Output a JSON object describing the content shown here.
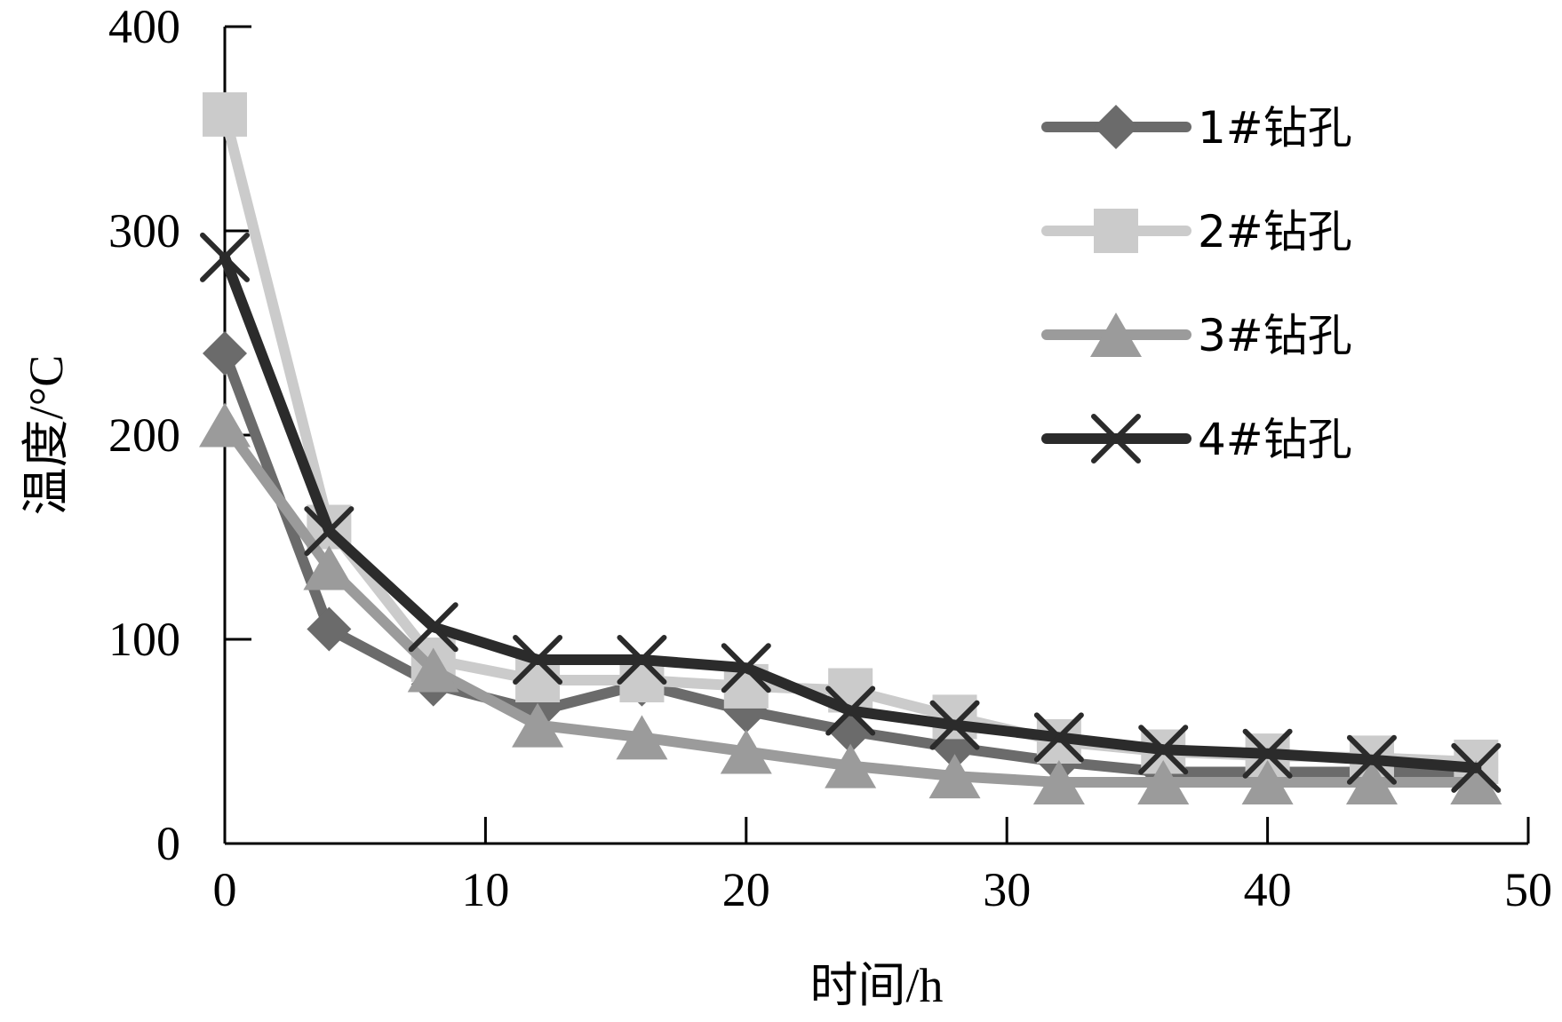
{
  "chart_data": {
    "type": "line",
    "xlabel": "时间/h",
    "ylabel": "温度/°C",
    "xlim": [
      0,
      50
    ],
    "ylim": [
      0,
      400
    ],
    "x_ticks": [
      0,
      10,
      20,
      30,
      40,
      50
    ],
    "y_ticks": [
      0,
      100,
      200,
      300,
      400
    ],
    "grid": false,
    "legend_position": "top-right",
    "x": [
      0,
      4,
      8,
      12,
      16,
      20,
      24,
      28,
      32,
      36,
      40,
      44,
      48
    ],
    "series": [
      {
        "name": "1#钻孔",
        "color": "#6b6b6b",
        "marker": "diamond",
        "values": [
          240,
          105,
          78,
          65,
          78,
          65,
          55,
          47,
          40,
          35,
          35,
          35,
          35
        ]
      },
      {
        "name": "2#钻孔",
        "color": "#cbcbcb",
        "marker": "square",
        "values": [
          357,
          155,
          90,
          80,
          80,
          77,
          75,
          62,
          50,
          45,
          43,
          42,
          40
        ]
      },
      {
        "name": "3#钻孔",
        "color": "#9b9b9b",
        "marker": "triangle",
        "values": [
          205,
          135,
          85,
          58,
          52,
          45,
          38,
          33,
          30,
          30,
          30,
          30,
          30
        ]
      },
      {
        "name": "4#钻孔",
        "color": "#2b2b2b",
        "marker": "x",
        "values": [
          287,
          153,
          106,
          90,
          90,
          86,
          65,
          58,
          52,
          46,
          44,
          41,
          37
        ]
      }
    ]
  }
}
